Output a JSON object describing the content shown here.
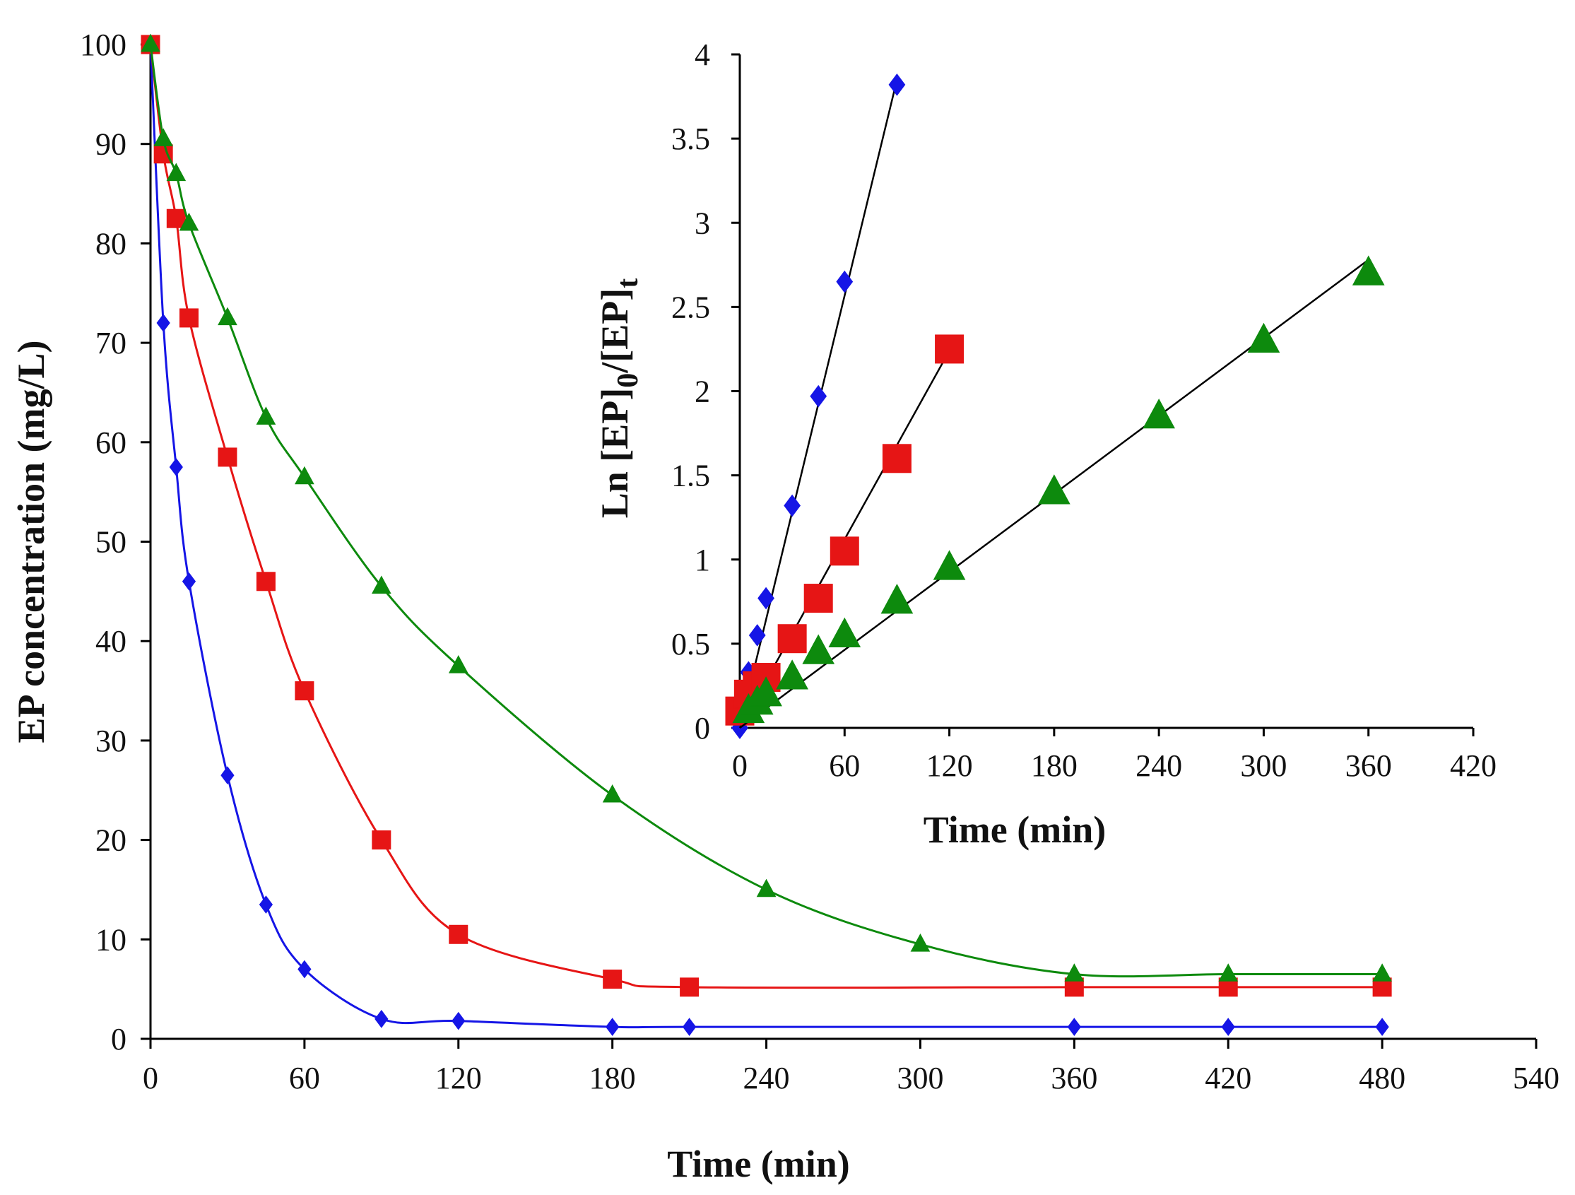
{
  "chart_data": [
    {
      "type": "line",
      "id": "main",
      "title": "",
      "xlabel": "Time (min)",
      "ylabel": "EP concentration (mg/L)",
      "xlim": [
        0,
        540
      ],
      "ylim": [
        0,
        100
      ],
      "x_ticks": [
        0,
        60,
        120,
        180,
        240,
        300,
        360,
        420,
        480,
        540
      ],
      "y_ticks": [
        0,
        10,
        20,
        30,
        40,
        50,
        60,
        70,
        80,
        90,
        100
      ],
      "grid": false,
      "legend": "none",
      "series": [
        {
          "name": "blue diamonds",
          "color": "#1515e6",
          "marker": "diamond",
          "x": [
            0,
            5,
            10,
            15,
            30,
            45,
            60,
            90,
            120,
            180,
            210,
            360,
            420,
            480
          ],
          "y": [
            100,
            72,
            57.5,
            46,
            26.5,
            13.5,
            7,
            2,
            1.8,
            1.2,
            1.2,
            1.2,
            1.2,
            1.2
          ]
        },
        {
          "name": "red squares",
          "color": "#e61515",
          "marker": "square",
          "x": [
            0,
            5,
            10,
            15,
            30,
            45,
            60,
            90,
            120,
            180,
            210,
            360,
            420,
            480
          ],
          "y": [
            100,
            89,
            82.5,
            72.5,
            58.5,
            46,
            35,
            20,
            10.5,
            6,
            5.2,
            5.2,
            5.2,
            5.2
          ]
        },
        {
          "name": "green triangles",
          "color": "#0d8a0d",
          "marker": "triangle",
          "x": [
            0,
            5,
            10,
            15,
            30,
            45,
            60,
            90,
            120,
            180,
            240,
            300,
            360,
            420,
            480
          ],
          "y": [
            100,
            90.5,
            87,
            82,
            72.5,
            62.5,
            56.5,
            45.5,
            37.5,
            24.5,
            15,
            9.5,
            6.5,
            6.5,
            6.5
          ]
        }
      ]
    },
    {
      "type": "scatter",
      "id": "inset",
      "title": "",
      "xlabel": "Time (min)",
      "ylabel_parts": [
        "Ln [EP]",
        "0",
        "/[EP]",
        "t"
      ],
      "xlim": [
        0,
        420
      ],
      "ylim": [
        0,
        4
      ],
      "x_ticks": [
        0,
        60,
        120,
        180,
        240,
        300,
        360,
        420
      ],
      "y_ticks": [
        0,
        0.5,
        1,
        1.5,
        2,
        2.5,
        3,
        3.5,
        4
      ],
      "y_tick_labels": [
        "0",
        "0.5",
        "1",
        "1.5",
        "2",
        "2.5",
        "3",
        "3.5",
        "4"
      ],
      "grid": false,
      "legend": "none",
      "series": [
        {
          "name": "blue diamonds",
          "color": "#1515e6",
          "marker": "diamond",
          "x": [
            0,
            5,
            10,
            15,
            30,
            45,
            60,
            90
          ],
          "y": [
            0,
            0.33,
            0.55,
            0.77,
            1.32,
            1.97,
            2.65,
            3.82
          ],
          "fit": [
            [
              0,
              0
            ],
            [
              90,
              3.85
            ]
          ]
        },
        {
          "name": "red squares",
          "color": "#e61515",
          "marker": "square",
          "x": [
            0,
            5,
            10,
            15,
            30,
            45,
            60,
            90,
            120
          ],
          "y": [
            0.1,
            0.2,
            0.25,
            0.3,
            0.53,
            0.77,
            1.05,
            1.6,
            2.25
          ],
          "fit": [
            [
              0,
              0
            ],
            [
              120,
              2.24
            ]
          ]
        },
        {
          "name": "green triangles",
          "color": "#0d8a0d",
          "marker": "triangle",
          "x": [
            5,
            10,
            15,
            30,
            45,
            60,
            90,
            120,
            180,
            240,
            300,
            360
          ],
          "y": [
            0.1,
            0.15,
            0.2,
            0.3,
            0.45,
            0.55,
            0.75,
            0.95,
            1.4,
            1.85,
            2.3,
            2.7
          ],
          "fit": [
            [
              0,
              0
            ],
            [
              360,
              2.78
            ]
          ]
        }
      ]
    }
  ]
}
